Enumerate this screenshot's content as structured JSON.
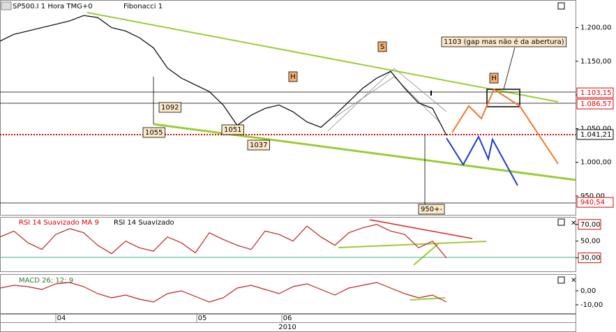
{
  "toolbar": {
    "symbol": "SP500.I 1 Hora TMG+0",
    "study": "Fibonacci 1"
  },
  "price_panel": {
    "ylim": [
      922,
      1241
    ],
    "yticks": [
      {
        "value": 1200,
        "label": "1.200,00"
      },
      {
        "value": 1150,
        "label": "1.150,00"
      },
      {
        "value": 1100,
        "label": "1.100,00"
      },
      {
        "value": 1050,
        "label": "1.050,00"
      },
      {
        "value": 1000,
        "label": "1.000,00"
      },
      {
        "value": 950,
        "label": "950,00"
      }
    ],
    "price_labels": [
      {
        "value": 1103.15,
        "label": "1.103,15"
      },
      {
        "value": 1086.57,
        "label": "1.086,57"
      },
      {
        "value": 1041.21,
        "label": "1.041,21"
      },
      {
        "value": 940.54,
        "label": "940,54"
      }
    ],
    "values": [
      1180,
      1190,
      1195,
      1200,
      1205,
      1210,
      1218,
      1215,
      1200,
      1195,
      1185,
      1170,
      1140,
      1125,
      1115,
      1105,
      1085,
      1055,
      1070,
      1080,
      1085,
      1075,
      1060,
      1052,
      1070,
      1090,
      1110,
      1125,
      1135,
      1110,
      1088,
      1080,
      1040
    ],
    "annotations": [
      "1092",
      "1055",
      "1051",
      "1037",
      "950+-",
      "1103 (gap mas não é da abertura)"
    ],
    "wave_labels": [
      "S",
      "H",
      "H"
    ]
  },
  "rsi_panel": {
    "title": "RSI 14 Suavizado MA 9",
    "subtitle": "RSI 14 Suavizado",
    "ylim": [
      13,
      79
    ],
    "yticks": [
      {
        "value": 70,
        "label": "70,00"
      },
      {
        "value": 50,
        "label": "50,00"
      },
      {
        "value": 30,
        "label": "30,00"
      }
    ],
    "values": [
      55,
      62,
      48,
      40,
      58,
      65,
      60,
      45,
      35,
      50,
      42,
      38,
      55,
      48,
      36,
      60,
      52,
      45,
      40,
      62,
      58,
      50,
      68,
      55,
      45,
      60,
      66,
      70,
      62,
      58,
      42,
      50,
      30
    ]
  },
  "macd_panel": {
    "title": "MACD 26; 12; 9",
    "ylim": [
      -16.5,
      12
    ],
    "yticks": [
      {
        "value": 0,
        "label": "0,00"
      },
      {
        "value": -10,
        "label": "-10,00"
      }
    ],
    "values": [
      2,
      4,
      3,
      1,
      5,
      6,
      3,
      -2,
      -5,
      -3,
      -6,
      -8,
      -2,
      0,
      -4,
      -8,
      -5,
      2,
      4,
      1,
      -2,
      3,
      5,
      1,
      -3,
      2,
      4,
      6,
      2,
      -2,
      -5,
      -3,
      -8
    ]
  },
  "time_axis": {
    "ticks": [
      "04",
      "05",
      "06"
    ],
    "year": "2010"
  }
}
